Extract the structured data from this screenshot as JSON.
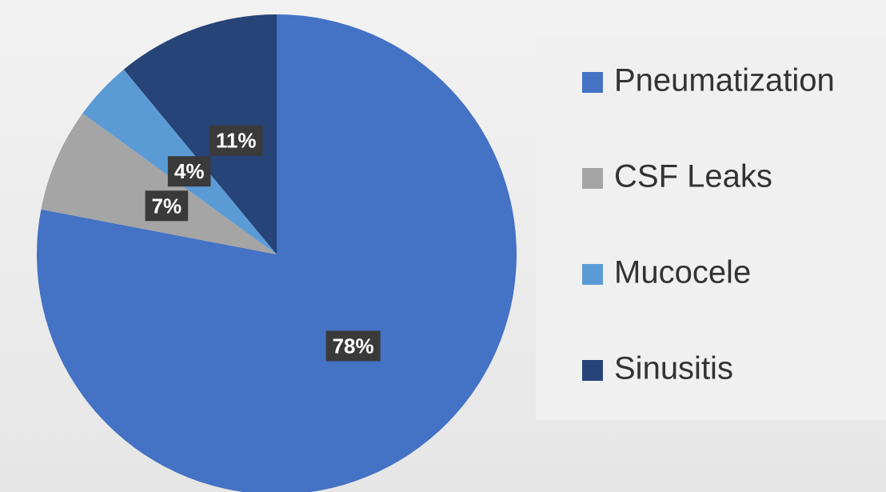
{
  "chart_data": {
    "type": "pie",
    "categories": [
      "Pneumatization",
      "CSF Leaks",
      "Mucocele",
      "Sinusitis"
    ],
    "values": [
      78,
      7,
      4,
      11
    ],
    "value_labels": [
      "78%",
      "7%",
      "4%",
      "11%"
    ],
    "colors": [
      "#4472c4",
      "#a5a5a5",
      "#5b9bd5",
      "#264478"
    ],
    "legend": "right"
  }
}
